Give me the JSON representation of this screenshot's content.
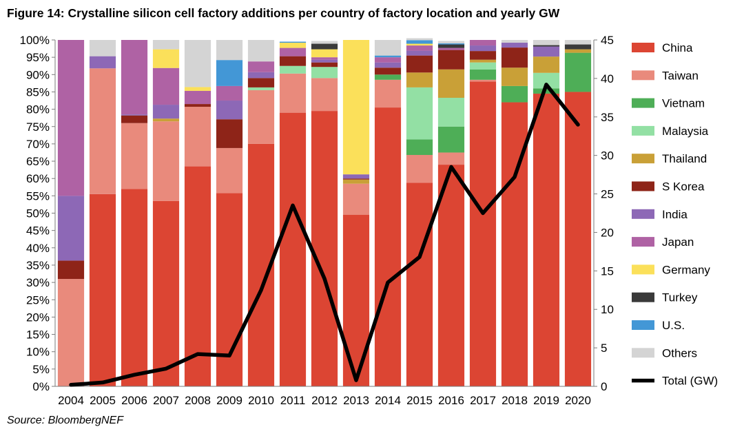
{
  "title": "Figure 14: Crystalline silicon cell factory additions per country of factory location and yearly GW",
  "source": "Source: BloombergNEF",
  "chart_data": {
    "type": "bar",
    "stacked": true,
    "categories": [
      "2004",
      "2005",
      "2006",
      "2007",
      "2008",
      "2009",
      "2010",
      "2011",
      "2012",
      "2013",
      "2014",
      "2015",
      "2016",
      "2017",
      "2018",
      "2019",
      "2020"
    ],
    "y_axis_left": {
      "ylim": [
        0,
        100
      ],
      "ticks": [
        0,
        5,
        10,
        15,
        20,
        25,
        30,
        35,
        40,
        45,
        50,
        55,
        60,
        65,
        70,
        75,
        80,
        85,
        90,
        95,
        100
      ],
      "tick_suffix": "%"
    },
    "y_axis_right": {
      "ylim": [
        0,
        45
      ],
      "ticks": [
        0,
        5,
        10,
        15,
        20,
        25,
        30,
        35,
        40,
        45
      ]
    },
    "grid": false,
    "legend": "right",
    "series": [
      {
        "name": "China",
        "color": "#DC4533",
        "values": [
          0,
          55.5,
          57,
          53.5,
          63.5,
          55.8,
          70,
          79,
          79.5,
          49.5,
          80.5,
          58.8,
          64,
          88,
          82,
          84.5,
          85
        ]
      },
      {
        "name": "Taiwan",
        "color": "#E98A7C",
        "values": [
          31,
          36.3,
          19,
          23,
          17.2,
          13,
          15.5,
          11.3,
          9.5,
          9,
          8,
          8,
          3.5,
          0.5,
          0,
          0,
          0
        ]
      },
      {
        "name": "Vietnam",
        "color": "#4EAE57",
        "values": [
          0,
          0,
          0,
          0,
          0,
          0,
          0,
          0,
          0,
          0,
          1.5,
          4.5,
          7.5,
          3,
          4.7,
          1.5,
          11.3
        ]
      },
      {
        "name": "Malaysia",
        "color": "#93E0A4",
        "values": [
          0,
          0,
          0,
          0,
          0,
          0,
          0.8,
          2.2,
          3.2,
          0,
          0,
          15,
          8.3,
          2,
          0,
          4.5,
          0
        ]
      },
      {
        "name": "Thailand",
        "color": "#C9A037",
        "values": [
          0,
          0,
          0,
          0.8,
          0,
          0,
          0,
          0,
          0,
          1.2,
          0,
          4.3,
          8.2,
          0.8,
          5.3,
          4.7,
          1
        ]
      },
      {
        "name": "S Korea",
        "color": "#8E2418",
        "values": [
          5.3,
          0,
          2.2,
          0,
          0.8,
          8.3,
          2.7,
          2.8,
          1.3,
          0.3,
          2,
          4.9,
          5.6,
          2.5,
          5.8,
          0,
          0
        ]
      },
      {
        "name": "India",
        "color": "#8D68B6",
        "values": [
          18.7,
          3.5,
          0.3,
          4,
          0,
          5.4,
          1.7,
          0,
          0.8,
          1.2,
          1.5,
          1.4,
          0,
          1.6,
          1.4,
          2.9,
          0
        ]
      },
      {
        "name": "Japan",
        "color": "#AF62A4",
        "values": [
          45,
          0,
          21.5,
          10.6,
          3.8,
          4.2,
          3.1,
          2.4,
          0.7,
          0,
          1.5,
          1.5,
          0.6,
          1.6,
          0,
          0,
          0
        ]
      },
      {
        "name": "Germany",
        "color": "#FBE05A",
        "values": [
          0,
          0,
          0,
          5.4,
          1.1,
          0,
          0,
          1.5,
          2.3,
          38.8,
          0,
          0.5,
          0,
          0,
          0,
          0,
          0
        ]
      },
      {
        "name": "Turkey",
        "color": "#3A3A3A",
        "values": [
          0,
          0,
          0,
          0,
          0,
          0,
          0,
          0,
          1.6,
          0,
          0,
          0,
          1,
          0,
          0,
          0.4,
          1.4
        ]
      },
      {
        "name": "U.S.",
        "color": "#4397D6",
        "values": [
          0,
          0,
          0,
          0,
          0,
          7.5,
          0,
          0.3,
          0,
          0,
          0.5,
          1,
          0.3,
          0,
          0,
          0,
          0
        ]
      },
      {
        "name": "Others",
        "color": "#D4D4D4",
        "values": [
          0,
          4.7,
          0,
          2.7,
          13.6,
          5.8,
          6.2,
          0,
          0.8,
          0,
          4.5,
          0.6,
          0.7,
          0,
          0.8,
          1.5,
          1.3
        ]
      }
    ],
    "line_series": {
      "name": "Total (GW)",
      "axis": "right",
      "color": "#000000",
      "values": [
        0.2,
        0.5,
        1.5,
        2.3,
        4.2,
        4.0,
        12.5,
        23.5,
        14,
        0.8,
        13.5,
        16.8,
        28.5,
        22.5,
        27.2,
        39.2,
        34
      ]
    }
  }
}
